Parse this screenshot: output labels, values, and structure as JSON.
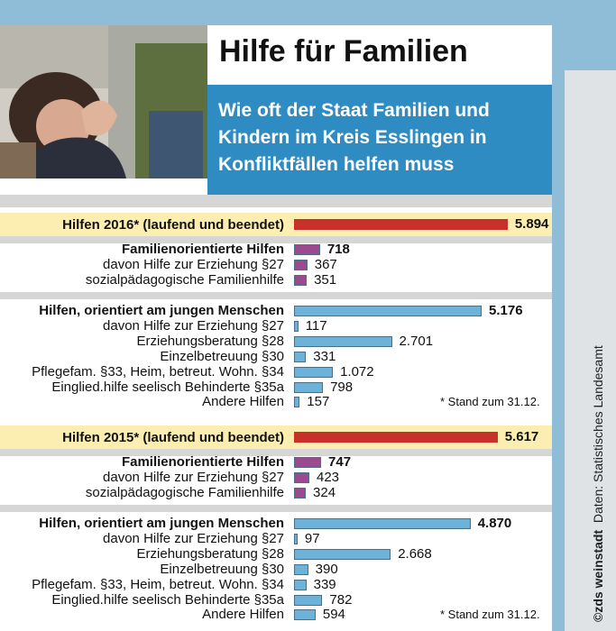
{
  "header": {
    "title": "Hilfe für Familien",
    "subtitle_lines": [
      "Wie oft der Staat Familien und",
      "Kindern im Kreis Esslingen in",
      "Konfliktfällen helfen muss"
    ]
  },
  "credit": {
    "brand": "©zds weinstadt",
    "source": "Daten: Statistisches Landesamt"
  },
  "colors": {
    "total": "#c8302a",
    "family": "#9b4a8f",
    "youth": "#6db3d9",
    "subtitle_bg": "#2e8cc2",
    "band": "#fbeeb0"
  },
  "chart_data": {
    "type": "bar",
    "orientation": "horizontal",
    "xlim": [
      0,
      6000
    ],
    "panels": [
      {
        "header": "Hilfen 2016* (laufend und beendet)",
        "header_value": 5894,
        "header_label": "5.894",
        "groups": [
          {
            "kind": "family",
            "rows": [
              {
                "label": "Familienorientierte Hilfen",
                "value": 718,
                "value_label": "718",
                "bold": true
              },
              {
                "label": "davon Hilfe zur Erziehung §27",
                "value": 367,
                "value_label": "367",
                "bold": false
              },
              {
                "label": "sozialpädagogische Familienhilfe",
                "value": 351,
                "value_label": "351",
                "bold": false
              }
            ]
          },
          {
            "kind": "youth",
            "rows": [
              {
                "label": "Hilfen, orientiert am jungen Menschen",
                "value": 5176,
                "value_label": "5.176",
                "bold": true
              },
              {
                "label": "davon Hilfe zur Erziehung §27",
                "value": 117,
                "value_label": "117",
                "bold": false
              },
              {
                "label": "Erziehungsberatung §28",
                "value": 2701,
                "value_label": "2.701",
                "bold": false
              },
              {
                "label": "Einzelbetreuung §30",
                "value": 331,
                "value_label": "331",
                "bold": false
              },
              {
                "label": "Pflegefam. §33, Heim, betreut. Wohn. §34",
                "value": 1072,
                "value_label": "1.072",
                "bold": false
              },
              {
                "label": "Einglied.hilfe seelisch Behinderte §35a",
                "value": 798,
                "value_label": "798",
                "bold": false
              },
              {
                "label": "Andere Hilfen",
                "value": 157,
                "value_label": "157",
                "bold": false
              }
            ]
          }
        ],
        "note": "* Stand zum 31.12."
      },
      {
        "header": "Hilfen 2015* (laufend und beendet)",
        "header_value": 5617,
        "header_label": "5.617",
        "groups": [
          {
            "kind": "family",
            "rows": [
              {
                "label": "Familienorientierte Hilfen",
                "value": 747,
                "value_label": "747",
                "bold": true
              },
              {
                "label": "davon Hilfe zur Erziehung §27",
                "value": 423,
                "value_label": "423",
                "bold": false
              },
              {
                "label": "sozialpädagogische Familienhilfe",
                "value": 324,
                "value_label": "324",
                "bold": false
              }
            ]
          },
          {
            "kind": "youth",
            "rows": [
              {
                "label": "Hilfen, orientiert am jungen Menschen",
                "value": 4870,
                "value_label": "4.870",
                "bold": true
              },
              {
                "label": "davon Hilfe zur Erziehung §27",
                "value": 97,
                "value_label": "97",
                "bold": false
              },
              {
                "label": "Erziehungsberatung §28",
                "value": 2668,
                "value_label": "2.668",
                "bold": false
              },
              {
                "label": "Einzelbetreuung §30",
                "value": 390,
                "value_label": "390",
                "bold": false
              },
              {
                "label": "Pflegefam. §33, Heim, betreut. Wohn. §34",
                "value": 339,
                "value_label": "339",
                "bold": false
              },
              {
                "label": "Einglied.hilfe seelisch Behinderte §35a",
                "value": 782,
                "value_label": "782",
                "bold": false
              },
              {
                "label": "Andere Hilfen",
                "value": 594,
                "value_label": "594",
                "bold": false
              }
            ]
          }
        ],
        "note": "* Stand zum 31.12."
      }
    ]
  }
}
